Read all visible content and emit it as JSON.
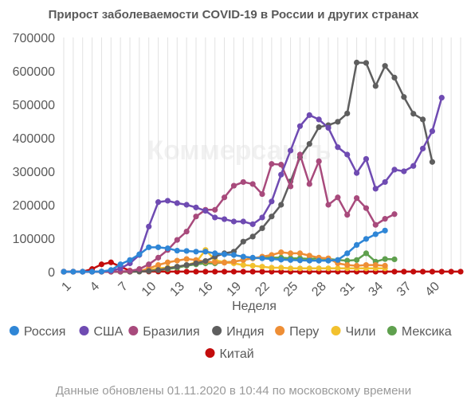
{
  "chart_data": {
    "type": "line",
    "title": "Прирост заболеваемости COVID-19 в России и других странах",
    "xlabel": "Неделя",
    "ylabel": "",
    "x_tick_labels": [
      "1",
      "4",
      "7",
      "10",
      "13",
      "16",
      "19",
      "22",
      "25",
      "28",
      "31",
      "34",
      "37",
      "40"
    ],
    "y_tick_labels": [
      "0",
      "100000",
      "200000",
      "300000",
      "400000",
      "500000",
      "600000",
      "700000"
    ],
    "xlim": [
      1,
      43
    ],
    "ylim": [
      0,
      700000
    ],
    "grid": "vertical",
    "legend_position": "bottom",
    "series": [
      {
        "name": "Россия",
        "color": "#2f86d6",
        "start_week": 1,
        "values": [
          0,
          0,
          0,
          0,
          500,
          5000,
          22000,
          35000,
          52000,
          73000,
          73000,
          70000,
          63000,
          62000,
          60000,
          60000,
          55000,
          52000,
          50000,
          45000,
          42000,
          40000,
          38000,
          36000,
          35000,
          34000,
          33000,
          33000,
          33000,
          35000,
          55000,
          80000,
          98000,
          112000,
          123000
        ]
      },
      {
        "name": "США",
        "color": "#6f4bb2",
        "start_week": 1,
        "values": [
          0,
          0,
          0,
          0,
          500,
          3000,
          10000,
          25000,
          50000,
          135000,
          208000,
          212000,
          205000,
          200000,
          192000,
          182000,
          162000,
          157000,
          150000,
          150000,
          142000,
          162000,
          210000,
          290000,
          362000,
          435000,
          468000,
          455000,
          430000,
          372000,
          350000,
          295000,
          337000,
          248000,
          268000,
          305000,
          300000,
          316000,
          368000,
          420000,
          520000
        ]
      },
      {
        "name": "Бразилия",
        "color": "#a84a7c",
        "start_week": 1,
        "values": [
          0,
          0,
          0,
          0,
          0,
          0,
          500,
          2000,
          8000,
          22000,
          42000,
          65000,
          95000,
          120000,
          165000,
          185000,
          185000,
          222000,
          257000,
          268000,
          262000,
          232000,
          322000,
          320000,
          255000,
          350000,
          262000,
          330000,
          200000,
          222000,
          170000,
          220000,
          190000,
          140000,
          158000,
          172000
        ]
      },
      {
        "name": "Индия",
        "color": "#5e5e5e",
        "start_week": 1,
        "values": [
          0,
          0,
          0,
          0,
          0,
          0,
          0,
          0,
          500,
          2000,
          5000,
          10000,
          15000,
          20000,
          25000,
          32000,
          45000,
          55000,
          60000,
          90000,
          105000,
          130000,
          165000,
          200000,
          270000,
          342000,
          382000,
          432000,
          438000,
          448000,
          473000,
          625000,
          624000,
          555000,
          615000,
          580000,
          522000,
          472000,
          455000,
          328000
        ]
      },
      {
        "name": "Перу",
        "color": "#ee8e35",
        "start_week": 1,
        "values": [
          0,
          0,
          0,
          0,
          0,
          0,
          0,
          0,
          1000,
          10000,
          20000,
          28000,
          33000,
          38000,
          35000,
          30000,
          28000,
          27000,
          30000,
          35000,
          40000,
          45000,
          50000,
          58000,
          55000,
          55000,
          48000,
          42000,
          40000,
          25000,
          20000,
          18000,
          20000,
          20000,
          18000
        ]
      },
      {
        "name": "Чили",
        "color": "#f2c12e",
        "start_week": 1,
        "values": [
          0,
          0,
          0,
          0,
          0,
          0,
          0,
          0,
          500,
          5000,
          10000,
          12000,
          15000,
          20000,
          28000,
          65000,
          35000,
          28000,
          25000,
          20000,
          18000,
          15000,
          12000,
          12000,
          10000,
          10000,
          10000,
          10000,
          10000,
          10000,
          10000,
          10000,
          10000,
          10000,
          10000
        ]
      },
      {
        "name": "Мексика",
        "color": "#5fa04e",
        "start_week": 1,
        "values": [
          0,
          0,
          0,
          0,
          0,
          0,
          0,
          0,
          500,
          2000,
          5000,
          8000,
          12000,
          18000,
          22000,
          25000,
          25000,
          28000,
          30000,
          35000,
          40000,
          42000,
          42000,
          42000,
          40000,
          40000,
          38000,
          40000,
          38000,
          35000,
          33000,
          35000,
          55000,
          30000,
          38000,
          37000
        ]
      },
      {
        "name": "Китай",
        "color": "#c30c0c",
        "start_week": 1,
        "values": [
          0,
          0,
          0,
          8000,
          22000,
          28000,
          15000,
          3000,
          1000,
          500,
          500,
          300,
          200,
          200,
          200,
          200,
          200,
          200,
          200,
          200,
          200,
          200,
          200,
          200,
          200,
          200,
          200,
          200,
          200,
          200,
          200,
          200,
          200,
          200,
          200,
          200,
          200,
          200,
          200,
          200,
          200,
          200,
          200
        ]
      }
    ]
  },
  "footer": "Данные обновлены 01.11.2020 в 10:44 по московскому времени",
  "watermark": "Коммерсантъ"
}
